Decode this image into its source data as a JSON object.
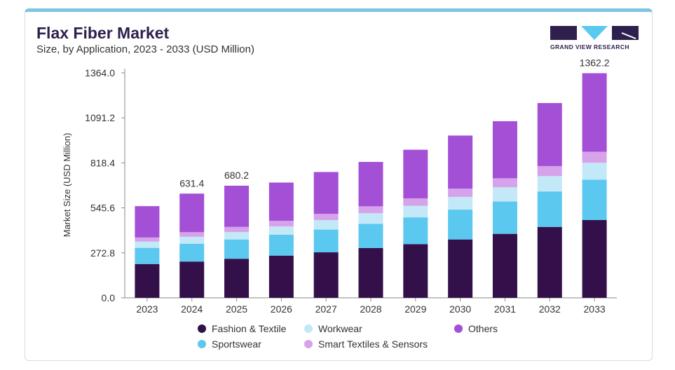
{
  "title": "Flax Fiber Market",
  "subtitle": "Size, by Application, 2023 - 2033 (USD Million)",
  "logo_text": "GRAND VIEW RESEARCH",
  "colors": {
    "Fashion & Textile": "#33104a",
    "Sportswear": "#5bc8f0",
    "Workwear": "#c3e8f8",
    "Smart Textiles & Sensors": "#d6a3ea",
    "Others": "#a34fd6"
  },
  "chart_data": {
    "type": "bar",
    "stacked": true,
    "ylabel": "Market Size (USD Million)",
    "xlabel": "",
    "ylim": [
      0,
      1364.0
    ],
    "yticks": [
      "0.0",
      "272.8",
      "545.6",
      "818.4",
      "1091.2",
      "1364.0"
    ],
    "categories": [
      "2023",
      "2024",
      "2025",
      "2026",
      "2027",
      "2028",
      "2029",
      "2030",
      "2031",
      "2032",
      "2033"
    ],
    "series": [
      {
        "name": "Fashion & Textile",
        "values": [
          205,
          220,
          237,
          256,
          276,
          302,
          325,
          354,
          388,
          430,
          472
        ]
      },
      {
        "name": "Sportswear",
        "values": [
          98,
          108,
          117,
          127,
          138,
          147,
          163,
          181,
          196,
          215,
          245
        ]
      },
      {
        "name": "Workwear",
        "values": [
          38,
          42,
          45,
          50,
          57,
          64,
          70,
          77,
          86,
          93,
          102
        ]
      },
      {
        "name": "Smart Textiles & Sensors",
        "values": [
          25,
          28,
          31,
          34,
          38,
          42,
          45,
          50,
          55,
          61,
          67
        ]
      },
      {
        "name": "Others",
        "values": [
          190,
          234,
          250,
          232,
          254,
          269,
          295,
          322,
          346,
          382,
          476
        ]
      }
    ],
    "data_labels": [
      {
        "category": "2024",
        "text": "631.4"
      },
      {
        "category": "2025",
        "text": "680.2"
      },
      {
        "category": "2033",
        "text": "1362.2"
      }
    ],
    "legend_position": "bottom"
  }
}
